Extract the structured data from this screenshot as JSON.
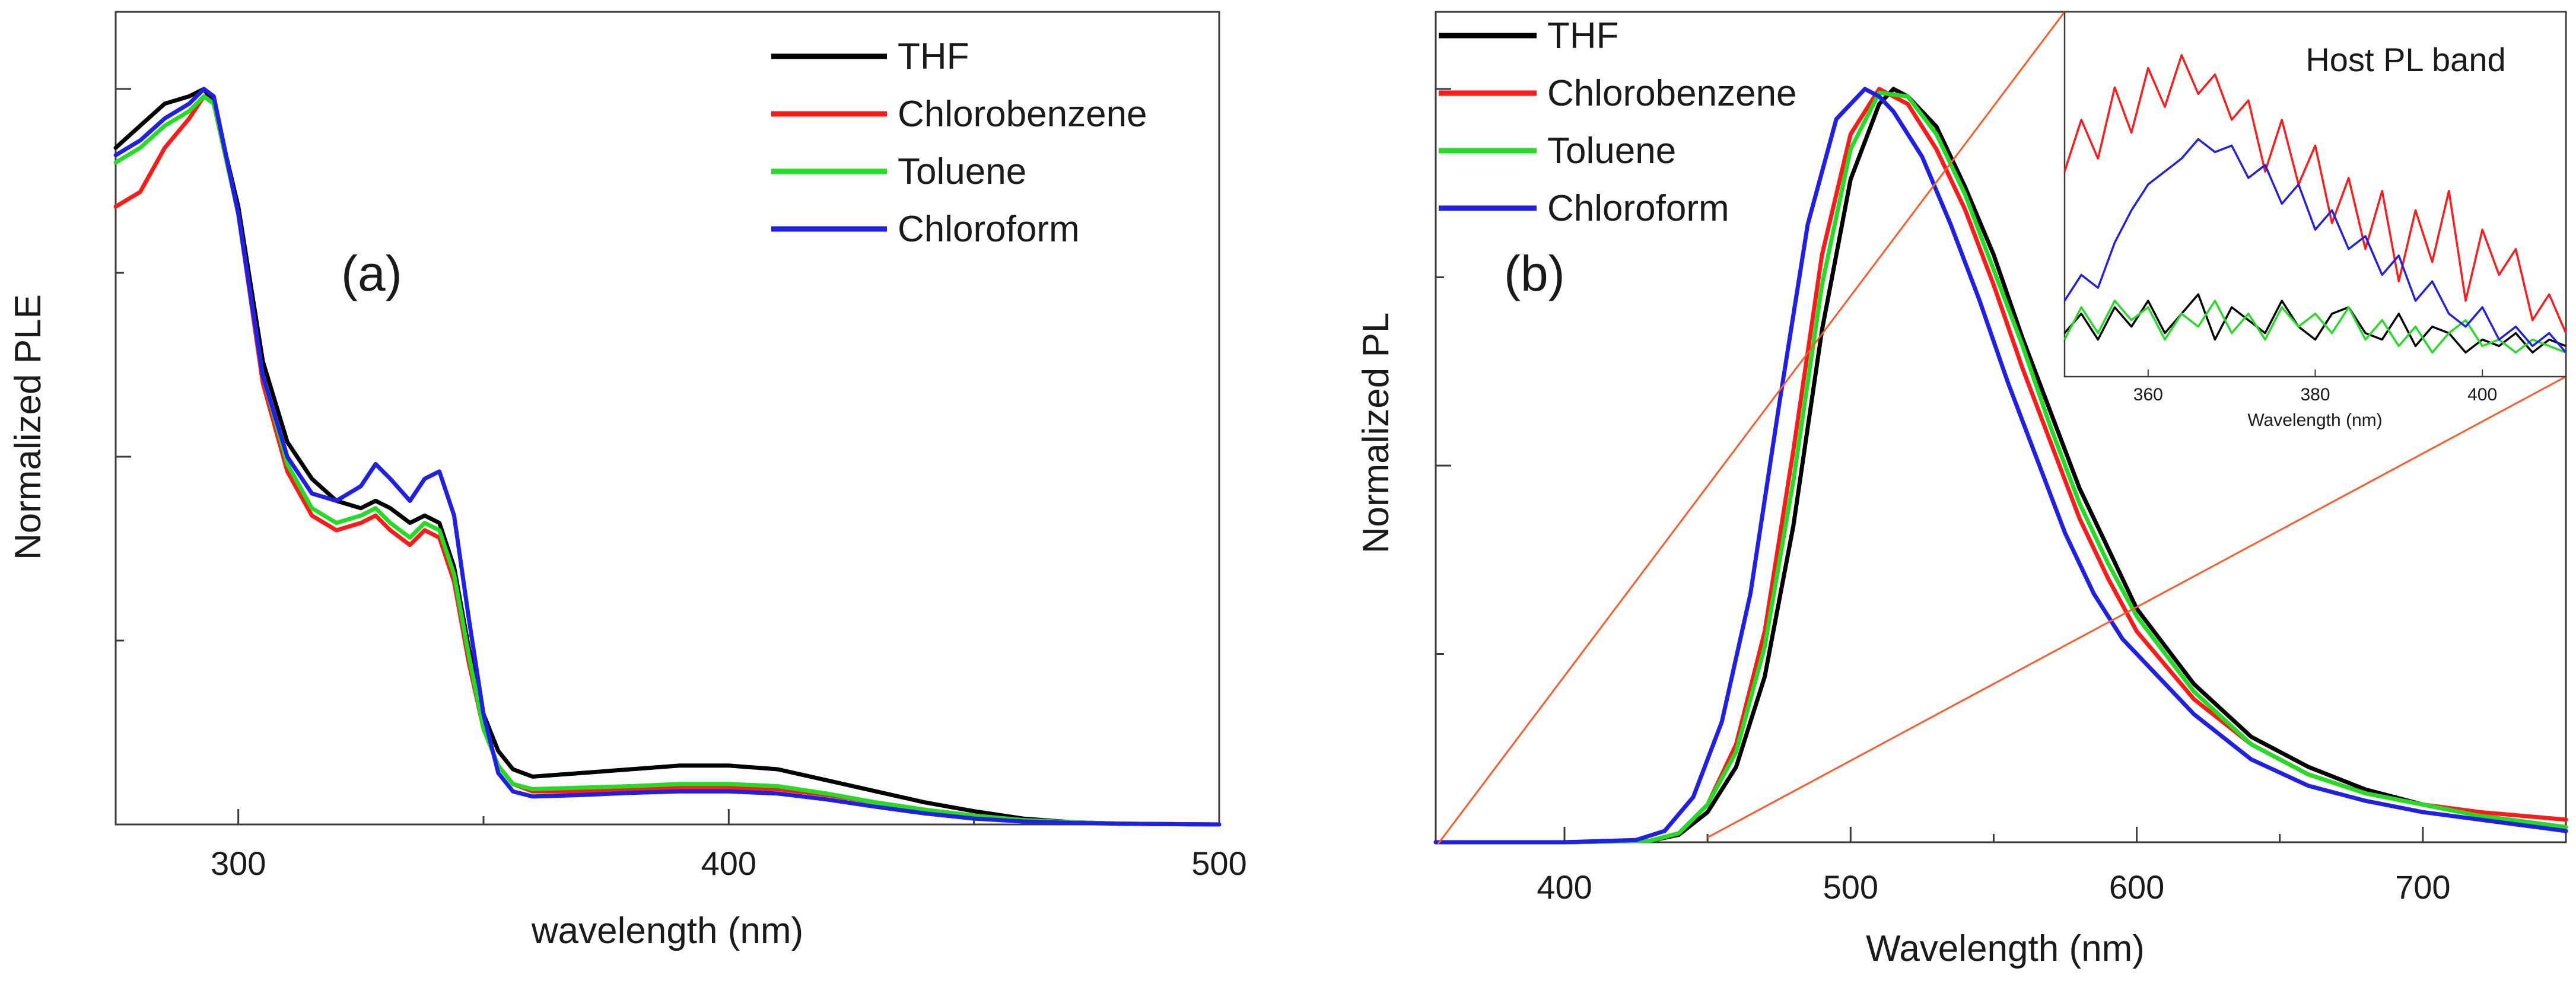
{
  "colors": {
    "THF": "#000000",
    "Chlorobenzene": "#ff1a1a",
    "Toluene": "#22dd22",
    "Chloroform": "#1f1fe6",
    "guide": "#ff5a28"
  },
  "chart_data": [
    {
      "id": "a",
      "type": "line",
      "panel_label": "(a)",
      "title": "",
      "xlabel": "wavelength (nm)",
      "ylabel": "Normalized PLE",
      "xlim": [
        275,
        500
      ],
      "ylim": [
        0,
        1.0
      ],
      "xticks": [
        300,
        400,
        500
      ],
      "xtick_labels": [
        "300",
        "400",
        "500"
      ],
      "minor_xticks": [
        350,
        450
      ],
      "yticks": [
        0,
        0.25,
        0.5,
        0.75,
        1.0
      ],
      "ytick_labels": [
        "",
        "",
        "",
        "",
        ""
      ],
      "legend": [
        "THF",
        "Chlorobenzene",
        "Toluene",
        "Chloroform"
      ],
      "legend_position": "top-right",
      "series": [
        {
          "name": "THF",
          "x": [
            275,
            280,
            285,
            290,
            293,
            295,
            300,
            305,
            310,
            315,
            320,
            325,
            328,
            331,
            335,
            338,
            341,
            344,
            347,
            350,
            353,
            356,
            360,
            370,
            380,
            390,
            400,
            410,
            420,
            430,
            440,
            450,
            460,
            470,
            480,
            500
          ],
          "y": [
            0.92,
            0.95,
            0.98,
            0.99,
            1.0,
            0.98,
            0.84,
            0.63,
            0.52,
            0.47,
            0.44,
            0.43,
            0.44,
            0.43,
            0.41,
            0.42,
            0.41,
            0.35,
            0.24,
            0.15,
            0.1,
            0.075,
            0.065,
            0.07,
            0.075,
            0.08,
            0.08,
            0.075,
            0.06,
            0.045,
            0.03,
            0.018,
            0.008,
            0.003,
            0.001,
            0.0
          ]
        },
        {
          "name": "Chlorobenzene",
          "x": [
            275,
            280,
            285,
            290,
            293,
            295,
            300,
            305,
            310,
            315,
            320,
            325,
            328,
            331,
            335,
            338,
            341,
            344,
            347,
            350,
            353,
            356,
            360,
            370,
            380,
            390,
            400,
            410,
            420,
            430,
            440,
            450,
            460,
            470,
            480,
            500
          ],
          "y": [
            0.84,
            0.86,
            0.92,
            0.96,
            0.99,
            0.98,
            0.83,
            0.6,
            0.48,
            0.42,
            0.4,
            0.41,
            0.42,
            0.4,
            0.38,
            0.4,
            0.39,
            0.33,
            0.22,
            0.13,
            0.08,
            0.055,
            0.045,
            0.045,
            0.048,
            0.05,
            0.05,
            0.048,
            0.04,
            0.03,
            0.02,
            0.012,
            0.006,
            0.003,
            0.001,
            0.0
          ]
        },
        {
          "name": "Toluene",
          "x": [
            275,
            280,
            285,
            290,
            293,
            295,
            300,
            305,
            310,
            315,
            320,
            325,
            328,
            331,
            335,
            338,
            341,
            344,
            347,
            350,
            353,
            356,
            360,
            370,
            380,
            390,
            400,
            410,
            420,
            430,
            440,
            450,
            460,
            470,
            480,
            500
          ],
          "y": [
            0.9,
            0.92,
            0.95,
            0.97,
            0.99,
            0.98,
            0.83,
            0.61,
            0.49,
            0.43,
            0.41,
            0.42,
            0.43,
            0.41,
            0.39,
            0.41,
            0.4,
            0.34,
            0.23,
            0.13,
            0.08,
            0.055,
            0.048,
            0.05,
            0.052,
            0.055,
            0.055,
            0.052,
            0.042,
            0.03,
            0.02,
            0.012,
            0.006,
            0.003,
            0.001,
            0.0
          ]
        },
        {
          "name": "Chloroform",
          "x": [
            275,
            280,
            285,
            290,
            293,
            295,
            300,
            305,
            310,
            315,
            320,
            325,
            328,
            331,
            335,
            338,
            341,
            344,
            347,
            350,
            353,
            356,
            360,
            370,
            380,
            390,
            400,
            410,
            420,
            430,
            440,
            450,
            460,
            470,
            480,
            500
          ],
          "y": [
            0.91,
            0.93,
            0.96,
            0.98,
            1.0,
            0.99,
            0.83,
            0.61,
            0.5,
            0.45,
            0.44,
            0.46,
            0.49,
            0.47,
            0.44,
            0.47,
            0.48,
            0.42,
            0.28,
            0.15,
            0.07,
            0.045,
            0.038,
            0.04,
            0.043,
            0.045,
            0.045,
            0.042,
            0.034,
            0.024,
            0.015,
            0.008,
            0.004,
            0.002,
            0.001,
            0.0
          ]
        }
      ]
    },
    {
      "id": "b",
      "type": "line",
      "panel_label": "(b)",
      "title": "",
      "xlabel": "Wavelength (nm)",
      "ylabel": "Normalized PL",
      "xlim": [
        355,
        750
      ],
      "ylim": [
        0,
        1.0
      ],
      "xticks": [
        400,
        500,
        600,
        700
      ],
      "xtick_labels": [
        "400",
        "500",
        "600",
        "700"
      ],
      "minor_xticks": [
        450,
        550,
        650
      ],
      "yticks": [
        0,
        0.25,
        0.5,
        0.75,
        1.0
      ],
      "ytick_labels": [
        "",
        "",
        "",
        "",
        ""
      ],
      "legend": [
        "THF",
        "Chlorobenzene",
        "Toluene",
        "Chloroform"
      ],
      "legend_position": "top-left",
      "series": [
        {
          "name": "THF",
          "x": [
            355,
            400,
            430,
            440,
            450,
            460,
            470,
            480,
            490,
            500,
            510,
            515,
            520,
            530,
            540,
            550,
            560,
            570,
            580,
            590,
            600,
            620,
            640,
            660,
            680,
            700,
            720,
            750
          ],
          "y": [
            0.0,
            0.0,
            0.002,
            0.01,
            0.04,
            0.1,
            0.22,
            0.42,
            0.68,
            0.88,
            0.98,
            1.0,
            0.99,
            0.95,
            0.87,
            0.78,
            0.67,
            0.57,
            0.47,
            0.39,
            0.31,
            0.21,
            0.14,
            0.1,
            0.07,
            0.05,
            0.035,
            0.02
          ]
        },
        {
          "name": "Chlorobenzene",
          "x": [
            355,
            400,
            430,
            440,
            450,
            460,
            470,
            480,
            490,
            500,
            510,
            520,
            530,
            540,
            550,
            560,
            570,
            580,
            590,
            600,
            620,
            640,
            660,
            680,
            700,
            720,
            750
          ],
          "y": [
            0.0,
            0.0,
            0.002,
            0.012,
            0.05,
            0.13,
            0.28,
            0.52,
            0.78,
            0.94,
            1.0,
            0.98,
            0.92,
            0.84,
            0.74,
            0.63,
            0.53,
            0.43,
            0.35,
            0.28,
            0.19,
            0.13,
            0.09,
            0.065,
            0.05,
            0.04,
            0.03
          ]
        },
        {
          "name": "Toluene",
          "x": [
            355,
            400,
            430,
            440,
            450,
            460,
            470,
            480,
            490,
            500,
            510,
            520,
            530,
            540,
            550,
            560,
            570,
            580,
            590,
            600,
            620,
            640,
            660,
            680,
            700,
            720,
            750
          ],
          "y": [
            0.0,
            0.0,
            0.002,
            0.012,
            0.05,
            0.12,
            0.26,
            0.48,
            0.74,
            0.92,
            0.995,
            0.99,
            0.94,
            0.86,
            0.76,
            0.66,
            0.55,
            0.45,
            0.37,
            0.3,
            0.2,
            0.13,
            0.09,
            0.065,
            0.05,
            0.035,
            0.02
          ]
        },
        {
          "name": "Chloroform",
          "x": [
            355,
            400,
            425,
            435,
            445,
            455,
            465,
            475,
            485,
            495,
            505,
            510,
            515,
            525,
            535,
            545,
            555,
            565,
            575,
            585,
            595,
            620,
            640,
            660,
            680,
            700,
            720,
            750
          ],
          "y": [
            0.0,
            0.0,
            0.003,
            0.015,
            0.06,
            0.16,
            0.33,
            0.58,
            0.82,
            0.96,
            1.0,
            0.99,
            0.97,
            0.91,
            0.82,
            0.72,
            0.61,
            0.51,
            0.41,
            0.33,
            0.27,
            0.17,
            0.11,
            0.075,
            0.055,
            0.04,
            0.03,
            0.015
          ]
        }
      ],
      "inset": {
        "type": "line",
        "title": "Host PL band",
        "xlabel": "Wavelength (nm)",
        "ylabel": "",
        "xlim": [
          350,
          410
        ],
        "ylim": [
          0,
          1.0
        ],
        "xticks": [
          360,
          380,
          400
        ],
        "xtick_labels": [
          "360",
          "380",
          "400"
        ],
        "series": [
          {
            "name": "THF",
            "x": [
              350,
              352,
              354,
              356,
              358,
              360,
              362,
              364,
              366,
              368,
              370,
              372,
              374,
              376,
              378,
              380,
              382,
              384,
              386,
              388,
              390,
              392,
              394,
              396,
              398,
              400,
              402,
              404,
              406,
              408,
              410
            ],
            "y": [
              0.12,
              0.18,
              0.1,
              0.2,
              0.14,
              0.22,
              0.12,
              0.18,
              0.24,
              0.1,
              0.2,
              0.16,
              0.12,
              0.22,
              0.14,
              0.1,
              0.18,
              0.2,
              0.12,
              0.1,
              0.18,
              0.08,
              0.14,
              0.12,
              0.06,
              0.1,
              0.08,
              0.12,
              0.06,
              0.1,
              0.08
            ]
          },
          {
            "name": "Chlorobenzene",
            "x": [
              350,
              352,
              354,
              356,
              358,
              360,
              362,
              364,
              366,
              368,
              370,
              372,
              374,
              376,
              378,
              380,
              382,
              384,
              386,
              388,
              390,
              392,
              394,
              396,
              398,
              400,
              402,
              404,
              406,
              408,
              410
            ],
            "y": [
              0.62,
              0.78,
              0.66,
              0.88,
              0.74,
              0.94,
              0.82,
              0.98,
              0.86,
              0.92,
              0.78,
              0.84,
              0.62,
              0.78,
              0.58,
              0.7,
              0.46,
              0.6,
              0.38,
              0.56,
              0.28,
              0.5,
              0.34,
              0.56,
              0.22,
              0.44,
              0.3,
              0.38,
              0.16,
              0.24,
              0.12
            ]
          },
          {
            "name": "Toluene",
            "x": [
              350,
              352,
              354,
              356,
              358,
              360,
              362,
              364,
              366,
              368,
              370,
              372,
              374,
              376,
              378,
              380,
              382,
              384,
              386,
              388,
              390,
              392,
              394,
              396,
              398,
              400,
              402,
              404,
              406,
              408,
              410
            ],
            "y": [
              0.1,
              0.2,
              0.12,
              0.22,
              0.16,
              0.2,
              0.1,
              0.18,
              0.14,
              0.22,
              0.12,
              0.18,
              0.1,
              0.2,
              0.14,
              0.18,
              0.12,
              0.2,
              0.1,
              0.16,
              0.08,
              0.14,
              0.06,
              0.12,
              0.16,
              0.08,
              0.1,
              0.06,
              0.1,
              0.08,
              0.06
            ]
          },
          {
            "name": "Chloroform",
            "x": [
              350,
              352,
              354,
              356,
              358,
              360,
              362,
              364,
              366,
              368,
              370,
              372,
              374,
              376,
              378,
              380,
              382,
              384,
              386,
              388,
              390,
              392,
              394,
              396,
              398,
              400,
              402,
              404,
              406,
              408,
              410
            ],
            "y": [
              0.22,
              0.3,
              0.26,
              0.4,
              0.5,
              0.58,
              0.62,
              0.66,
              0.72,
              0.68,
              0.7,
              0.6,
              0.64,
              0.52,
              0.58,
              0.44,
              0.5,
              0.38,
              0.42,
              0.3,
              0.36,
              0.22,
              0.28,
              0.18,
              0.14,
              0.2,
              0.1,
              0.14,
              0.08,
              0.12,
              0.06
            ]
          }
        ]
      }
    }
  ]
}
